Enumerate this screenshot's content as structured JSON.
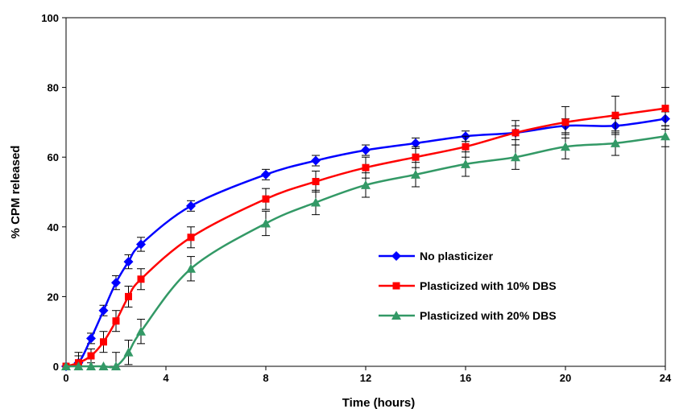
{
  "chart_data": {
    "type": "line",
    "xlabel": "Time (hours)",
    "ylabel": "% CPM released",
    "xlim": [
      0,
      24
    ],
    "ylim": [
      0,
      100
    ],
    "x_ticks": [
      0,
      4,
      8,
      12,
      16,
      20,
      24
    ],
    "y_ticks": [
      0,
      20,
      40,
      60,
      80,
      100
    ],
    "grid": false,
    "legend_position": "center-right",
    "series": [
      {
        "name": "No plasticizer",
        "color": "#0000ff",
        "marker": "diamond",
        "x": [
          0,
          0.5,
          1,
          1.5,
          2,
          2.5,
          3,
          5,
          8,
          10,
          12,
          14,
          16,
          18,
          20,
          22,
          24
        ],
        "y": [
          0,
          1,
          8,
          16,
          24,
          30,
          35,
          46,
          55,
          59,
          62,
          64,
          66,
          67,
          69,
          69,
          71
        ],
        "err": [
          0,
          2,
          1.5,
          1.5,
          2,
          2,
          2,
          1.5,
          1.5,
          1.5,
          1.5,
          1.5,
          1.5,
          2,
          2,
          2,
          2
        ]
      },
      {
        "name": "Plasticized with 10% DBS",
        "color": "#ff0000",
        "marker": "square",
        "x": [
          0,
          0.5,
          1,
          1.5,
          2,
          2.5,
          3,
          5,
          8,
          10,
          12,
          14,
          16,
          18,
          20,
          22,
          24
        ],
        "y": [
          0,
          1,
          3,
          7,
          13,
          20,
          25,
          37,
          48,
          53,
          57,
          60,
          63,
          67,
          70,
          72,
          74
        ],
        "err": [
          0,
          3,
          2,
          3,
          3,
          3,
          3,
          3,
          3,
          3,
          3,
          3,
          3,
          3.5,
          4.5,
          5.5,
          6
        ]
      },
      {
        "name": "Plasticized with 20% DBS",
        "color": "#339966",
        "marker": "triangle",
        "x": [
          0,
          0.5,
          1,
          1.5,
          2,
          2.5,
          3,
          5,
          8,
          10,
          12,
          14,
          16,
          18,
          20,
          22,
          24
        ],
        "y": [
          0,
          0,
          0,
          0,
          0,
          4,
          10,
          28,
          41,
          47,
          52,
          55,
          58,
          60,
          63,
          64,
          66
        ],
        "err": [
          0,
          0,
          0,
          0,
          4,
          3.5,
          3.5,
          3.5,
          3.5,
          3.5,
          3.5,
          3.5,
          3.5,
          3.5,
          3.5,
          3.5,
          3
        ]
      }
    ]
  }
}
